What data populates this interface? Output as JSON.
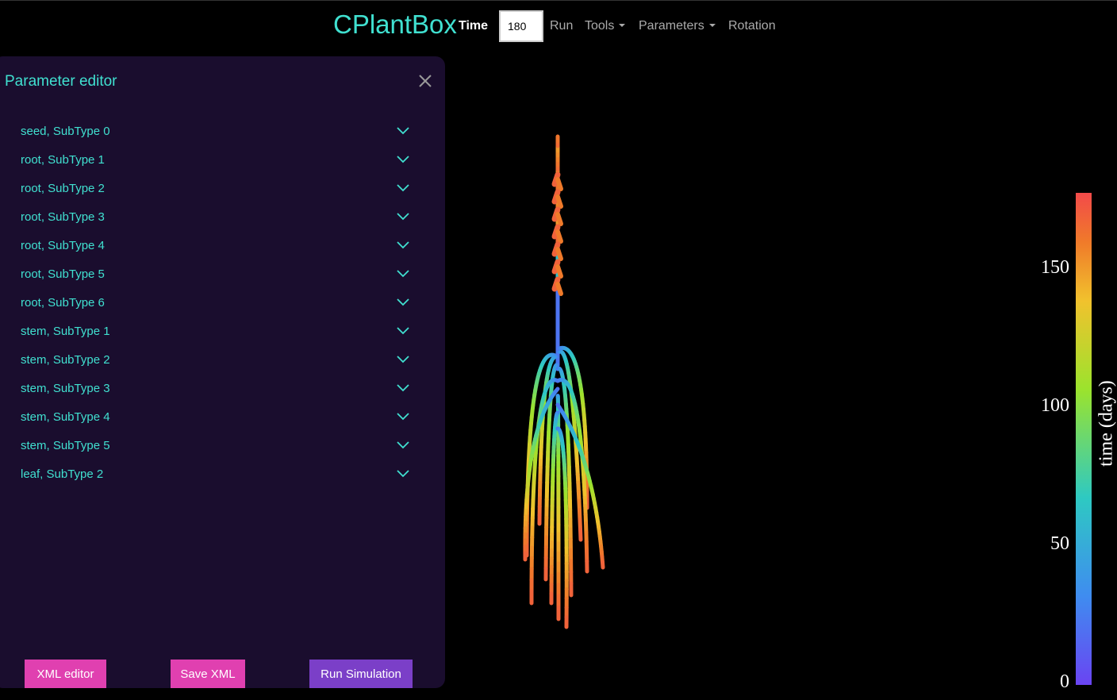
{
  "navbar": {
    "brand": "CPlantBox",
    "time_label": "Time",
    "time_value": "180",
    "run_label": "Run",
    "tools_label": "Tools",
    "parameters_label": "Parameters",
    "rotation_label": "Rotation"
  },
  "panel": {
    "title": "Parameter editor",
    "items": [
      {
        "label": "seed, SubType 0"
      },
      {
        "label": "root, SubType 1"
      },
      {
        "label": "root, SubType 2"
      },
      {
        "label": "root, SubType 3"
      },
      {
        "label": "root, SubType 4"
      },
      {
        "label": "root, SubType 5"
      },
      {
        "label": "root, SubType 6"
      },
      {
        "label": "stem, SubType 1"
      },
      {
        "label": "stem, SubType 2"
      },
      {
        "label": "stem, SubType 3"
      },
      {
        "label": "stem, SubType 4"
      },
      {
        "label": "stem, SubType 5"
      },
      {
        "label": "leaf, SubType 2"
      }
    ],
    "buttons": {
      "xml_editor": "XML editor",
      "save_xml": "Save XML",
      "run_simulation": "Run Simulation"
    }
  },
  "colorbar": {
    "title": "time (days)",
    "ticks": [
      "150",
      "100",
      "50",
      "0"
    ],
    "range": [
      0,
      180
    ]
  },
  "colors": {
    "accent": "#40e0d0",
    "panel_bg": "#1a0d2e",
    "pink_button": "#e040b0",
    "purple_button": "#7b3fc8"
  },
  "icons": {
    "close": "close-icon",
    "expand": "chevron-down-icon"
  }
}
